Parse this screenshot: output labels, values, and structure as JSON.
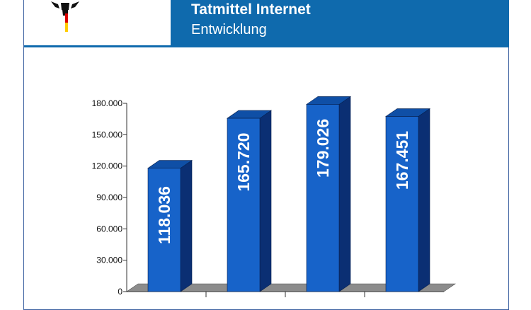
{
  "header": {
    "title": "Tatmittel Internet",
    "subtitle": "Entwicklung"
  },
  "colors": {
    "header_band": "#0f6aad",
    "bar_front": "#1763c9",
    "bar_top": "#0f4fa6",
    "bar_side": "#0b2f73",
    "floor": "#8c8c8c"
  },
  "icons": {
    "logo": "federal-eagle-icon"
  },
  "chart_data": {
    "type": "bar",
    "categories": [
      "",
      "",
      "",
      ""
    ],
    "values": [
      118036,
      165720,
      179026,
      167451
    ],
    "data_labels": [
      "118.036",
      "165.720",
      "179.026",
      "167.451"
    ],
    "ylim": [
      0,
      180000
    ],
    "yticks": [
      0,
      30000,
      60000,
      90000,
      120000,
      150000,
      180000
    ],
    "ytick_labels": [
      "0",
      "30.000",
      "60.000",
      "90.000",
      "120.000",
      "150.000",
      "180.000"
    ],
    "grid": false,
    "three_d": true
  }
}
